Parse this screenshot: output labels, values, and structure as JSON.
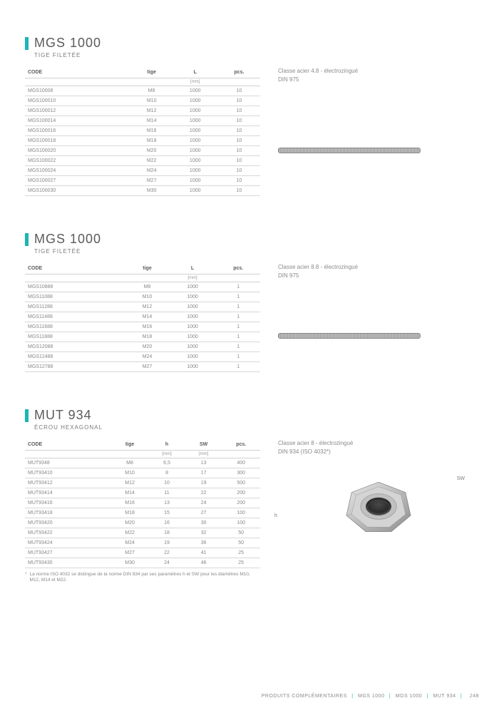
{
  "accent_color": "#1cb5b5",
  "sections": [
    {
      "title": "MGS 1000",
      "subtitle": "TIGE FILETÉE",
      "desc1": "Classe acier 4.8 - électrozingué",
      "desc2": "DIN 975",
      "columns": [
        "CODE",
        "tige",
        "L",
        "pcs."
      ],
      "units": [
        "",
        "",
        "[mm]",
        ""
      ],
      "rows": [
        [
          "MGS10008",
          "M8",
          "1000",
          "10"
        ],
        [
          "MGS100010",
          "M10",
          "1000",
          "10"
        ],
        [
          "MGS100012",
          "M12",
          "1000",
          "10"
        ],
        [
          "MGS100014",
          "M14",
          "1000",
          "10"
        ],
        [
          "MGS100016",
          "M16",
          "1000",
          "10"
        ],
        [
          "MGS100018",
          "M18",
          "1000",
          "10"
        ],
        [
          "MGS100020",
          "M20",
          "1000",
          "10"
        ],
        [
          "MGS100022",
          "M22",
          "1000",
          "10"
        ],
        [
          "MGS100024",
          "M24",
          "1000",
          "10"
        ],
        [
          "MGS100027",
          "M27",
          "1000",
          "10"
        ],
        [
          "MGS100030",
          "M30",
          "1000",
          "10"
        ]
      ]
    },
    {
      "title": "MGS 1000",
      "subtitle": "TIGE FILETÉE",
      "desc1": "Classe acier 8.8 - électrozingué",
      "desc2": "DIN 975",
      "columns": [
        "CODE",
        "tige",
        "L",
        "pcs."
      ],
      "units": [
        "",
        "",
        "[mm]",
        ""
      ],
      "rows": [
        [
          "MGS10888",
          "M8",
          "1000",
          "1"
        ],
        [
          "MGS11088",
          "M10",
          "1000",
          "1"
        ],
        [
          "MGS11288",
          "M12",
          "1000",
          "1"
        ],
        [
          "MGS11488",
          "M14",
          "1000",
          "1"
        ],
        [
          "MGS11688",
          "M16",
          "1000",
          "1"
        ],
        [
          "MGS11888",
          "M18",
          "1000",
          "1"
        ],
        [
          "MGS12088",
          "M20",
          "1000",
          "1"
        ],
        [
          "MGS12488",
          "M24",
          "1000",
          "1"
        ],
        [
          "MGS12788",
          "M27",
          "1000",
          "1"
        ]
      ]
    },
    {
      "title": "MUT 934",
      "subtitle": "ÉCROU HEXAGONAL",
      "desc1": "Classe acier 8 - électrozingué",
      "desc2": "DIN 934 (ISO 4032*)",
      "columns": [
        "CODE",
        "tige",
        "h",
        "SW",
        "pcs."
      ],
      "units": [
        "",
        "",
        "[mm]",
        "[mm]",
        ""
      ],
      "rows": [
        [
          "MUT9348",
          "M8",
          "6,5",
          "13",
          "400"
        ],
        [
          "MUT93410",
          "M10",
          "8",
          "17",
          "300"
        ],
        [
          "MUT93412",
          "M12",
          "10",
          "19",
          "500"
        ],
        [
          "MUT93414",
          "M14",
          "11",
          "22",
          "200"
        ],
        [
          "MUT93416",
          "M16",
          "13",
          "24",
          "200"
        ],
        [
          "MUT93418",
          "M18",
          "15",
          "27",
          "100"
        ],
        [
          "MUT93420",
          "M20",
          "16",
          "30",
          "100"
        ],
        [
          "MUT93422",
          "M22",
          "18",
          "32",
          "50"
        ],
        [
          "MUT93424",
          "M24",
          "19",
          "36",
          "50"
        ],
        [
          "MUT93427",
          "M27",
          "22",
          "41",
          "25"
        ],
        [
          "MUT93430",
          "M30",
          "24",
          "46",
          "25"
        ]
      ],
      "footnote_mark": "*",
      "footnote": "La norme ISO 4032 se distingue de la norme DIN 934 par ses paramètres h et SW pour les diamètres M10, M12, M14 et M22."
    }
  ],
  "nut_labels": {
    "sw": "SW",
    "h": "h"
  },
  "footer": {
    "category": "PRODUITS COMPLÉMENTAIRES",
    "items": [
      "MGS 1000",
      "MGS 1000",
      "MUT 934"
    ],
    "page": "248"
  }
}
